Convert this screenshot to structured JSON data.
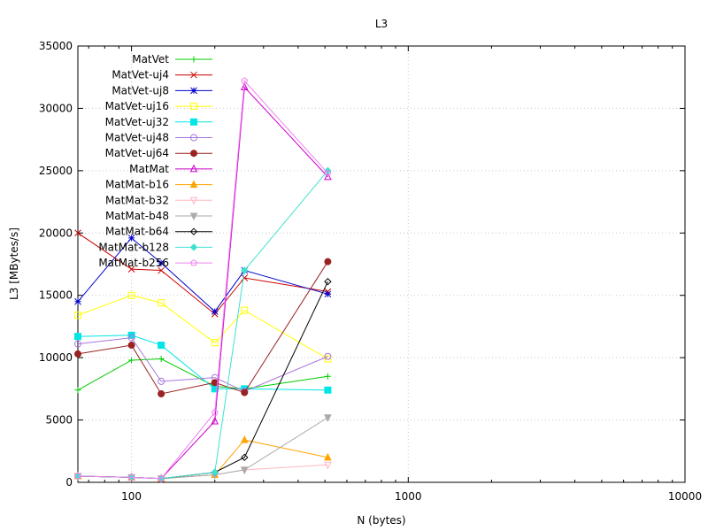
{
  "chart_data": {
    "type": "line",
    "title": "L3",
    "xlabel": "N (bytes)",
    "ylabel": "L3 [MBytes/s]",
    "xscale": "log",
    "xlim": [
      64,
      10000
    ],
    "ylim": [
      0,
      35000
    ],
    "xticks": [
      100,
      1000,
      10000
    ],
    "xtick_labels": [
      "100",
      "1000",
      "10000"
    ],
    "yticks": [
      0,
      5000,
      10000,
      15000,
      20000,
      25000,
      30000,
      35000
    ],
    "ytick_labels": [
      "0",
      "5000",
      "10000",
      "15000",
      "20000",
      "25000",
      "30000",
      "35000"
    ],
    "grid": true,
    "legend_position": "top-left",
    "x": [
      64,
      100,
      128,
      200,
      256,
      512
    ],
    "series": [
      {
        "name": "MatVet",
        "color": "#00cc00",
        "marker": "plus",
        "values": [
          7400,
          9800,
          9900,
          7700,
          7500,
          8500
        ]
      },
      {
        "name": "MatVet-uj4",
        "color": "#cc0000",
        "marker": "cross",
        "values": [
          20000,
          17100,
          17000,
          13500,
          16400,
          15300
        ]
      },
      {
        "name": "MatVet-uj8",
        "color": "#0000cc",
        "marker": "star",
        "values": [
          14500,
          19600,
          17600,
          13700,
          17000,
          15100
        ]
      },
      {
        "name": "MatVet-uj16",
        "color": "#ffff00",
        "marker": "square-open",
        "values": [
          13400,
          15000,
          14400,
          11200,
          13800,
          9900
        ]
      },
      {
        "name": "MatVet-uj32",
        "color": "#00e5e5",
        "marker": "square-filled",
        "values": [
          11700,
          11800,
          11000,
          7500,
          7500,
          7400
        ]
      },
      {
        "name": "MatVet-uj48",
        "color": "#aa77dd",
        "marker": "circle-open",
        "values": [
          11100,
          11600,
          8100,
          8400,
          7300,
          10100
        ]
      },
      {
        "name": "MatVet-uj64",
        "color": "#992222",
        "marker": "circle-filled",
        "values": [
          10300,
          11000,
          7100,
          8000,
          7200,
          17700
        ]
      },
      {
        "name": "MatMat",
        "color": "#cc00cc",
        "marker": "triangle-open",
        "values": [
          500,
          400,
          300,
          4900,
          31700,
          24500
        ]
      },
      {
        "name": "MatMat-b16",
        "color": "#ffa500",
        "marker": "triangle-filled",
        "values": [
          500,
          400,
          300,
          600,
          3400,
          2000
        ]
      },
      {
        "name": "MatMat-b32",
        "color": "#ffb6c1",
        "marker": "triangle-down-open",
        "values": [
          500,
          400,
          300,
          600,
          1000,
          1400
        ]
      },
      {
        "name": "MatMat-b48",
        "color": "#aaaaaa",
        "marker": "triangle-down-filled",
        "values": [
          500,
          400,
          300,
          600,
          1000,
          5200
        ]
      },
      {
        "name": "MatMat-b64",
        "color": "#000000",
        "marker": "diamond-open",
        "values": [
          500,
          400,
          300,
          800,
          2000,
          16100
        ]
      },
      {
        "name": "MatMat-b128",
        "color": "#40e0d0",
        "marker": "diamond-filled",
        "values": [
          500,
          400,
          300,
          800,
          17000,
          25000
        ]
      },
      {
        "name": "MatMat-b256",
        "color": "#ee82ee",
        "marker": "pentagon-open",
        "values": [
          500,
          400,
          300,
          5600,
          32200,
          24800
        ]
      }
    ]
  }
}
